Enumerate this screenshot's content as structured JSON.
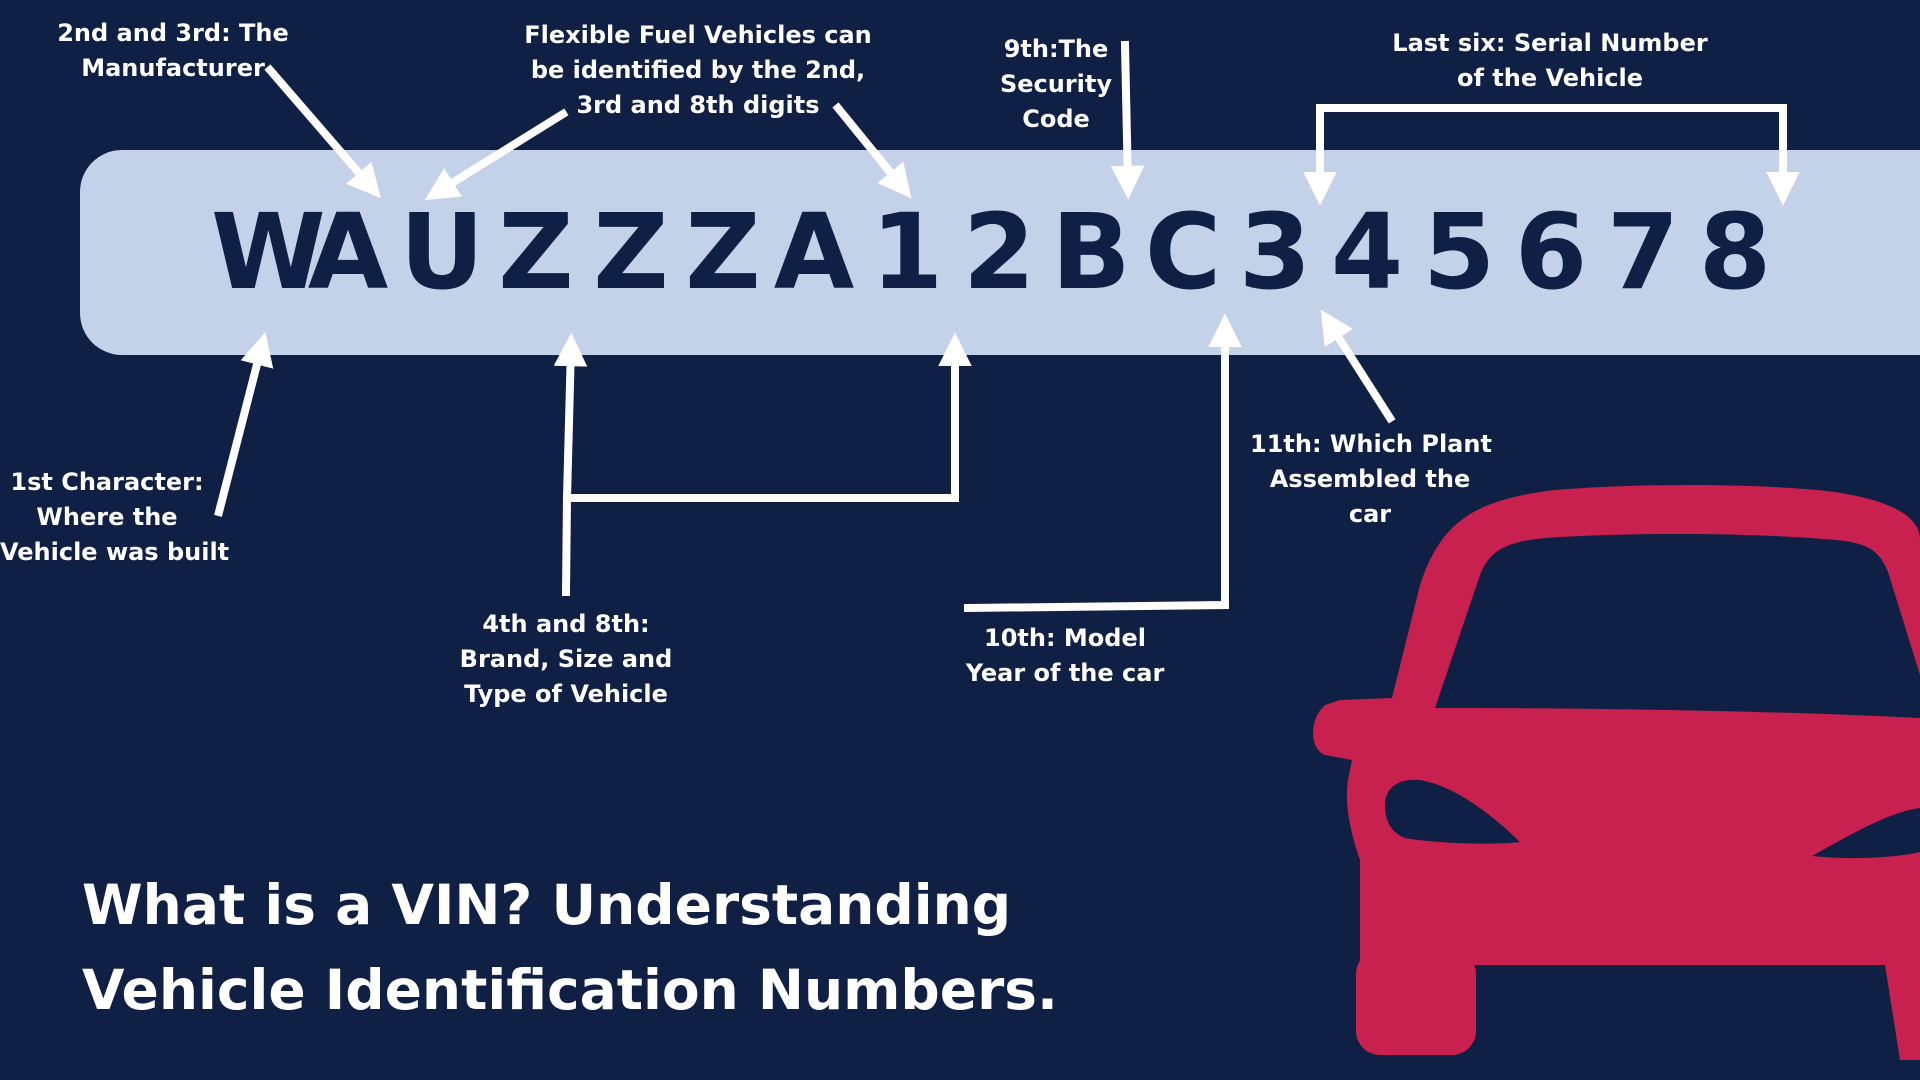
{
  "colors": {
    "background": "#0f2044",
    "vin_bar": "#c3d2e9",
    "vin_text": "#0f2044",
    "annotation": "#ffffff",
    "car": "#c8204f"
  },
  "vin": {
    "characters": [
      "W",
      "A",
      "U",
      "Z",
      "Z",
      "Z",
      "A",
      "1",
      "2",
      "B",
      "C",
      "3",
      "4",
      "5",
      "6",
      "7",
      "8"
    ]
  },
  "labels": {
    "manufacturer": [
      "2nd and 3rd: The",
      "Manufacturer"
    ],
    "flex_fuel": [
      "Flexible Fuel Vehicles can",
      "be identified by the 2nd,",
      "3rd and 8th digits"
    ],
    "security": [
      "9th:The",
      "Security",
      "Code"
    ],
    "serial": [
      "Last six: Serial Number",
      "of the Vehicle"
    ],
    "first_char": [
      "1st Character:",
      "Where the",
      "Vehicle was built"
    ],
    "brand": [
      "4th and 8th:",
      "Brand, Size and",
      "Type of Vehicle"
    ],
    "model_year": [
      "10th: Model",
      "Year of the car"
    ],
    "plant": [
      "11th: Which Plant",
      "Assembled the",
      "car"
    ]
  },
  "title": {
    "line1": "What is a VIN? Understanding",
    "line2": "Vehicle Identification Numbers."
  },
  "icons": {
    "car": "car-front-icon"
  }
}
